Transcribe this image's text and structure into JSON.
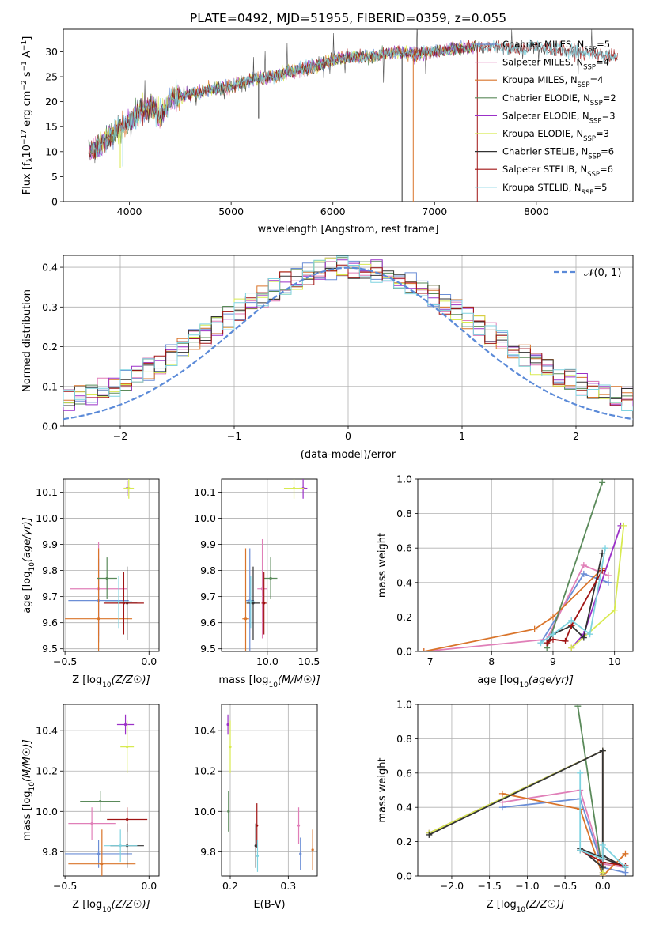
{
  "title": "PLATE=0492, MJD=51955, FIBERID=0359, z=0.055",
  "colors": {
    "Chabrier MILES": "#6b8ed6",
    "Salpeter MILES": "#e07fb8",
    "Kroupa MILES": "#d9742a",
    "Chabrier ELODIE": "#5a8a5a",
    "Salpeter ELODIE": "#9b30c8",
    "Kroupa ELODIE": "#d8ea50",
    "Chabrier STELIB": "#333333",
    "Salpeter STELIB": "#a01414",
    "Kroupa STELIB": "#7fd3e0",
    "normal_curve": "#5b8ad8"
  },
  "chart_data": [
    {
      "id": "spectrum",
      "type": "line",
      "xlabel": "wavelength [Angstrom, rest frame]",
      "ylabel_parts": {
        "a": "Flux [f",
        "b": "λ",
        "c": "10",
        "d": "−17",
        "e": " erg cm",
        "f": "−2",
        "g": " s",
        "h": "−1",
        "i": " A",
        "j": "−1",
        "k": "]"
      },
      "xlim": [
        3350,
        8950
      ],
      "ylim": [
        0,
        34.5
      ],
      "xticks": [
        4000,
        5000,
        6000,
        7000,
        8000
      ],
      "yticks": [
        0,
        5,
        10,
        15,
        20,
        25,
        30
      ],
      "trend": {
        "x": [
          3600,
          3700,
          3800,
          3900,
          4000,
          4100,
          4200,
          4300,
          4400,
          4600,
          4800,
          5000,
          5200,
          5400,
          5600,
          5800,
          6000,
          6200,
          6400,
          6600,
          6800,
          7000,
          7200,
          7400,
          7600,
          7800,
          8000,
          8200,
          8400,
          8600,
          8800
        ],
        "y": [
          10,
          11,
          13,
          14.5,
          16,
          18,
          19,
          17,
          20.5,
          21.5,
          22.5,
          23,
          24.5,
          25,
          26,
          27,
          28.5,
          29,
          29,
          30,
          29.5,
          30,
          30.5,
          31,
          31,
          30.5,
          31,
          30.5,
          30,
          29.5,
          29
        ]
      },
      "legend": [
        {
          "name": "Chabrier MILES",
          "nssp": "5"
        },
        {
          "name": "Salpeter MILES",
          "nssp": "4"
        },
        {
          "name": "Kroupa MILES",
          "nssp": "4"
        },
        {
          "name": "Chabrier ELODIE",
          "nssp": "2"
        },
        {
          "name": "Salpeter ELODIE",
          "nssp": "3"
        },
        {
          "name": "Kroupa ELODIE",
          "nssp": "3"
        },
        {
          "name": "Chabrier STELIB",
          "nssp": "6"
        },
        {
          "name": "Salpeter STELIB",
          "nssp": "6"
        },
        {
          "name": "Kroupa STELIB",
          "nssp": "5"
        }
      ],
      "legend_prefix": "N",
      "legend_sub": "SSP",
      "legend_location": "right"
    },
    {
      "id": "residuals",
      "type": "line",
      "xlabel": "(data-model)/error",
      "ylabel": "Normed distribution",
      "xlim": [
        -2.5,
        2.5
      ],
      "ylim": [
        0,
        0.43
      ],
      "xticks": [
        -2,
        -1,
        0,
        1,
        2
      ],
      "yticks": [
        0.0,
        0.1,
        0.2,
        0.3,
        0.4
      ],
      "bin_width": 0.1,
      "grid": true,
      "legend_label": "𝒩(0, 1)",
      "legend_location": "top-right"
    },
    {
      "id": "age-vs-Z",
      "type": "scatter",
      "xlabel": "Z [log10(Z/Z☉)]",
      "ylabel": "age  [log10(age/yr)]",
      "xlim": [
        -0.51,
        0.06
      ],
      "ylim": [
        9.49,
        10.15
      ],
      "xticks": [
        -0.5,
        0.0
      ],
      "xticklabels": [
        "−0.5",
        "0.0"
      ],
      "yticks": [
        9.5,
        9.6,
        9.7,
        9.8,
        9.9,
        10.0,
        10.1
      ],
      "points": [
        {
          "series": "Salpeter ELODIE",
          "x": -0.13,
          "y": 10.115,
          "xerr": 0.02,
          "yerr": 0.03
        },
        {
          "series": "Kroupa ELODIE",
          "x": -0.12,
          "y": 10.115,
          "xerr": 0.03,
          "yerr": 0.04
        },
        {
          "series": "Chabrier MILES",
          "x": -0.3,
          "y": 9.685,
          "xerr": 0.18,
          "yerr": 0.16
        },
        {
          "series": "Salpeter MILES",
          "x": -0.3,
          "y": 9.73,
          "xerr": 0.17,
          "yerr": 0.18
        },
        {
          "series": "Kroupa MILES",
          "x": -0.3,
          "y": 9.615,
          "xerr": 0.2,
          "yerr": 0.27
        },
        {
          "series": "Chabrier ELODIE",
          "x": -0.25,
          "y": 9.77,
          "xerr": 0.06,
          "yerr": 0.08
        },
        {
          "series": "Chabrier STELIB",
          "x": -0.13,
          "y": 9.675,
          "xerr": 0.06,
          "yerr": 0.14
        },
        {
          "series": "Salpeter STELIB",
          "x": -0.15,
          "y": 9.675,
          "xerr": 0.12,
          "yerr": 0.12
        },
        {
          "series": "Kroupa STELIB",
          "x": -0.18,
          "y": 9.68,
          "xerr": 0.08,
          "yerr": 0.1
        }
      ]
    },
    {
      "id": "age-vs-mass",
      "type": "scatter",
      "xlabel": "mass [log10(M/M☉)]",
      "xlim": [
        9.45,
        10.6
      ],
      "ylim": [
        9.49,
        10.15
      ],
      "xticks": [
        10.0,
        10.5
      ],
      "xticklabels": [
        "10.0",
        "10.5"
      ],
      "yticks": [
        9.5,
        9.6,
        9.7,
        9.8,
        9.9,
        10.0,
        10.1
      ],
      "points": [
        {
          "series": "Salpeter ELODIE",
          "x": 10.43,
          "y": 10.115,
          "xerr": 0.05,
          "yerr": 0.04
        },
        {
          "series": "Kroupa ELODIE",
          "x": 10.32,
          "y": 10.115,
          "xerr": 0.12,
          "yerr": 0.04
        },
        {
          "series": "Chabrier MILES",
          "x": 9.79,
          "y": 9.685,
          "xerr": 0.05,
          "yerr": 0.2
        },
        {
          "series": "Salpeter MILES",
          "x": 9.94,
          "y": 9.73,
          "xerr": 0.06,
          "yerr": 0.19
        },
        {
          "series": "Kroupa MILES",
          "x": 9.74,
          "y": 9.615,
          "xerr": 0.04,
          "yerr": 0.27
        },
        {
          "series": "Chabrier ELODIE",
          "x": 10.04,
          "y": 9.77,
          "xerr": 0.08,
          "yerr": 0.08
        },
        {
          "series": "Chabrier STELIB",
          "x": 9.83,
          "y": 9.675,
          "xerr": 0.08,
          "yerr": 0.14
        },
        {
          "series": "Salpeter STELIB",
          "x": 9.96,
          "y": 9.675,
          "xerr": 0.03,
          "yerr": 0.12
        },
        {
          "series": "Kroupa STELIB",
          "x": 9.8,
          "y": 9.68,
          "xerr": 0.05,
          "yerr": 0.1
        }
      ]
    },
    {
      "id": "weight-vs-age",
      "type": "line",
      "xlabel": "age  [log10(age/yr)]",
      "ylabel": "mass weight",
      "xlim": [
        6.8,
        10.3
      ],
      "ylim": [
        0,
        1
      ],
      "xticks": [
        7,
        8,
        9,
        10
      ],
      "yticks": [
        0.0,
        0.2,
        0.4,
        0.6,
        0.8,
        1.0
      ],
      "series": [
        {
          "name": "Chabrier MILES",
          "x": [
            8.8,
            9.5,
            9.9
          ],
          "y": [
            0.05,
            0.45,
            0.4
          ]
        },
        {
          "name": "Salpeter MILES",
          "x": [
            6.9,
            8.9,
            9.5,
            9.9
          ],
          "y": [
            0.0,
            0.07,
            0.5,
            0.44
          ]
        },
        {
          "name": "Kroupa MILES",
          "x": [
            6.9,
            8.7,
            9.0,
            9.8
          ],
          "y": [
            0.0,
            0.13,
            0.2,
            0.48
          ]
        },
        {
          "name": "Chabrier ELODIE",
          "x": [
            8.9,
            9.8
          ],
          "y": [
            0.02,
            0.98
          ]
        },
        {
          "name": "Salpeter ELODIE",
          "x": [
            9.3,
            9.5,
            10.1
          ],
          "y": [
            0.02,
            0.1,
            0.73
          ]
        },
        {
          "name": "Kroupa ELODIE",
          "x": [
            9.3,
            10.0,
            10.15
          ],
          "y": [
            0.02,
            0.24,
            0.73
          ]
        },
        {
          "name": "Chabrier STELIB",
          "x": [
            8.9,
            9.0,
            9.3,
            9.5,
            9.8
          ],
          "y": [
            0.05,
            0.1,
            0.15,
            0.08,
            0.57
          ]
        },
        {
          "name": "Salpeter STELIB",
          "x": [
            8.9,
            9.0,
            9.2,
            9.3,
            9.8
          ],
          "y": [
            0.05,
            0.07,
            0.06,
            0.15,
            0.47
          ]
        },
        {
          "name": "Kroupa STELIB",
          "x": [
            8.8,
            9.0,
            9.3,
            9.6,
            9.85
          ],
          "y": [
            0.05,
            0.1,
            0.18,
            0.1,
            0.6
          ]
        }
      ]
    },
    {
      "id": "mass-vs-Z",
      "type": "scatter",
      "xlabel": "Z [log10(Z/Z☉)]",
      "ylabel": "mass [log10(M/M☉)]",
      "xlim": [
        -0.51,
        0.06
      ],
      "ylim": [
        9.68,
        10.53
      ],
      "xticks": [
        -0.5,
        0.0
      ],
      "xticklabels": [
        "−0.5",
        "0.0"
      ],
      "yticks": [
        9.8,
        10.0,
        10.2,
        10.4
      ],
      "points": [
        {
          "series": "Salpeter ELODIE",
          "x": -0.14,
          "y": 10.43,
          "xerr": 0.05,
          "yerr": 0.05
        },
        {
          "series": "Kroupa ELODIE",
          "x": -0.13,
          "y": 10.32,
          "xerr": 0.04,
          "yerr": 0.13
        },
        {
          "series": "Chabrier ELODIE",
          "x": -0.29,
          "y": 10.05,
          "xerr": 0.12,
          "yerr": 0.05
        },
        {
          "series": "Salpeter MILES",
          "x": -0.34,
          "y": 9.94,
          "xerr": 0.14,
          "yerr": 0.08
        },
        {
          "series": "Salpeter STELIB",
          "x": -0.13,
          "y": 9.96,
          "xerr": 0.12,
          "yerr": 0.06
        },
        {
          "series": "Chabrier MILES",
          "x": -0.3,
          "y": 9.79,
          "xerr": 0.2,
          "yerr": 0.07
        },
        {
          "series": "Kroupa MILES",
          "x": -0.28,
          "y": 9.74,
          "xerr": 0.2,
          "yerr": 0.17
        },
        {
          "series": "Chabrier STELIB",
          "x": -0.13,
          "y": 9.83,
          "xerr": 0.1,
          "yerr": 0.11
        },
        {
          "series": "Kroupa STELIB",
          "x": -0.17,
          "y": 9.83,
          "xerr": 0.1,
          "yerr": 0.08
        }
      ]
    },
    {
      "id": "mass-vs-EBV",
      "type": "scatter",
      "xlabel": "E(B-V)",
      "xlim": [
        0.185,
        0.35
      ],
      "ylim": [
        9.68,
        10.53
      ],
      "xticks": [
        0.2,
        0.3
      ],
      "xticklabels": [
        "0.2",
        "0.3"
      ],
      "yticks": [
        9.8,
        10.0,
        10.2,
        10.4
      ],
      "points": [
        {
          "series": "Salpeter ELODIE",
          "x": 0.196,
          "y": 10.43,
          "yerr": 0.05
        },
        {
          "series": "Kroupa ELODIE",
          "x": 0.2,
          "y": 10.32,
          "yerr": 0.13
        },
        {
          "series": "Chabrier ELODIE",
          "x": 0.197,
          "y": 10.0,
          "yerr": 0.1
        },
        {
          "series": "Salpeter STELIB",
          "x": 0.246,
          "y": 9.93,
          "yerr": 0.11
        },
        {
          "series": "Chabrier STELIB",
          "x": 0.244,
          "y": 9.83,
          "yerr": 0.11
        },
        {
          "series": "Kroupa STELIB",
          "x": 0.247,
          "y": 9.78,
          "yerr": 0.08
        },
        {
          "series": "Salpeter MILES",
          "x": 0.318,
          "y": 9.93,
          "yerr": 0.09
        },
        {
          "series": "Chabrier MILES",
          "x": 0.321,
          "y": 9.79,
          "yerr": 0.08
        },
        {
          "series": "Kroupa MILES",
          "x": 0.342,
          "y": 9.81,
          "yerr": 0.1
        }
      ]
    },
    {
      "id": "weight-vs-Z",
      "type": "line",
      "xlabel": "Z [log10(Z/Z☉)]",
      "ylabel": "mass weight",
      "xlim": [
        -2.45,
        0.4
      ],
      "ylim": [
        0,
        1
      ],
      "xticks": [
        -2.0,
        -1.5,
        -1.0,
        -0.5,
        0.0
      ],
      "xticklabels": [
        "−2.0",
        "−1.5",
        "−1.0",
        "−0.5",
        "0.0"
      ],
      "yticks": [
        0.0,
        0.2,
        0.4,
        0.6,
        0.8,
        1.0
      ],
      "series": [
        {
          "name": "Chabrier MILES",
          "x": [
            -1.33,
            -0.3,
            -0.0,
            0.3
          ],
          "y": [
            0.4,
            0.45,
            0.05,
            0.02
          ]
        },
        {
          "name": "Salpeter MILES",
          "x": [
            -1.33,
            -0.3,
            -0.0,
            0.3
          ],
          "y": [
            0.43,
            0.5,
            0.07,
            0.05
          ]
        },
        {
          "name": "Kroupa MILES",
          "x": [
            -1.33,
            -0.3,
            0.0,
            0.3
          ],
          "y": [
            0.48,
            0.39,
            0.0,
            0.13
          ]
        },
        {
          "name": "Chabrier ELODIE",
          "x": [
            -0.33,
            0.0
          ],
          "y": [
            0.99,
            0.01
          ]
        },
        {
          "name": "Salpeter ELODIE",
          "x": [
            -2.3,
            0.0,
            0.0
          ],
          "y": [
            0.25,
            0.73,
            0.02
          ]
        },
        {
          "name": "Kroupa ELODIE",
          "x": [
            -2.3,
            0.0,
            0.0
          ],
          "y": [
            0.25,
            0.73,
            0.02
          ]
        },
        {
          "name": "Chabrier STELIB",
          "x": [
            -2.3,
            0.0,
            0.0,
            -0.3,
            0.3,
            0.0
          ],
          "y": [
            0.24,
            0.73,
            0.05,
            0.16,
            0.05,
            0.12
          ]
        },
        {
          "name": "Salpeter STELIB",
          "x": [
            -0.3,
            0.0,
            0.3
          ],
          "y": [
            0.15,
            0.08,
            0.06
          ]
        },
        {
          "name": "Kroupa STELIB",
          "x": [
            -0.3,
            -0.3,
            0.0,
            0.0,
            0.3
          ],
          "y": [
            0.6,
            0.15,
            0.1,
            0.18,
            0.05
          ]
        }
      ]
    }
  ]
}
